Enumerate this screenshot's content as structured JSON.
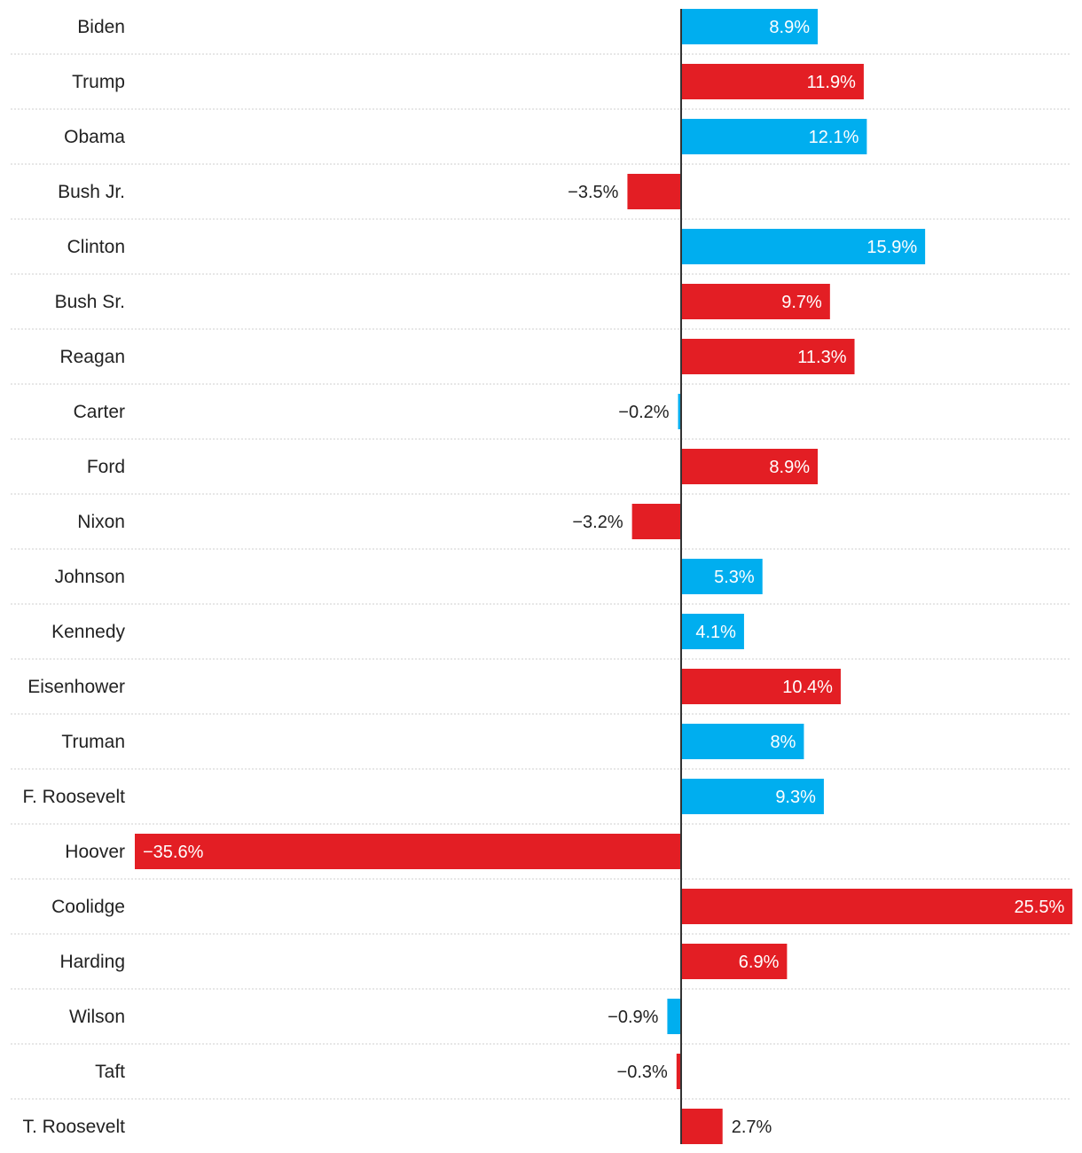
{
  "chart_data": {
    "type": "bar",
    "orientation": "horizontal",
    "title": "",
    "xlabel": "",
    "ylabel": "",
    "xlim": [
      -35.6,
      25.5
    ],
    "grid": false,
    "legend": "none",
    "colors": {
      "blue": "#00aeef",
      "red": "#e31e24",
      "axis": "#333333",
      "divider": "#cfcfcf"
    },
    "bars": [
      {
        "name": "Biden",
        "value": 8.9,
        "label": "8.9%",
        "color": "blue"
      },
      {
        "name": "Trump",
        "value": 11.9,
        "label": "11.9%",
        "color": "red"
      },
      {
        "name": "Obama",
        "value": 12.1,
        "label": "12.1%",
        "color": "blue"
      },
      {
        "name": "Bush Jr.",
        "value": -3.5,
        "label": "−3.5%",
        "color": "red"
      },
      {
        "name": "Clinton",
        "value": 15.9,
        "label": "15.9%",
        "color": "blue"
      },
      {
        "name": "Bush Sr.",
        "value": 9.7,
        "label": "9.7%",
        "color": "red"
      },
      {
        "name": "Reagan",
        "value": 11.3,
        "label": "11.3%",
        "color": "red"
      },
      {
        "name": "Carter",
        "value": -0.2,
        "label": "−0.2%",
        "color": "blue"
      },
      {
        "name": "Ford",
        "value": 8.9,
        "label": "8.9%",
        "color": "red"
      },
      {
        "name": "Nixon",
        "value": -3.2,
        "label": "−3.2%",
        "color": "red"
      },
      {
        "name": "Johnson",
        "value": 5.3,
        "label": "5.3%",
        "color": "blue"
      },
      {
        "name": "Kennedy",
        "value": 4.1,
        "label": "4.1%",
        "color": "blue"
      },
      {
        "name": "Eisenhower",
        "value": 10.4,
        "label": "10.4%",
        "color": "red"
      },
      {
        "name": "Truman",
        "value": 8.0,
        "label": "8%",
        "color": "blue"
      },
      {
        "name": "F. Roosevelt",
        "value": 9.3,
        "label": "9.3%",
        "color": "blue"
      },
      {
        "name": "Hoover",
        "value": -35.6,
        "label": "−35.6%",
        "color": "red"
      },
      {
        "name": "Coolidge",
        "value": 25.5,
        "label": "25.5%",
        "color": "red"
      },
      {
        "name": "Harding",
        "value": 6.9,
        "label": "6.9%",
        "color": "red"
      },
      {
        "name": "Wilson",
        "value": -0.9,
        "label": "−0.9%",
        "color": "blue"
      },
      {
        "name": "Taft",
        "value": -0.3,
        "label": "−0.3%",
        "color": "red"
      },
      {
        "name": "T. Roosevelt",
        "value": 2.7,
        "label": "2.7%",
        "color": "red"
      }
    ]
  }
}
